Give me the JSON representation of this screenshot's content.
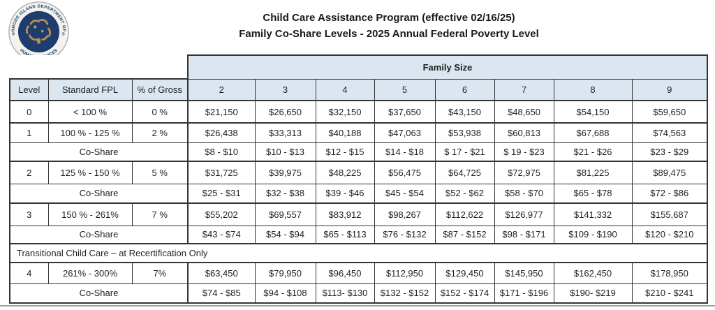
{
  "logo": {
    "ring_text_top": "RHODE ISLAND DEPARTMENT OF",
    "ring_text_bottom": "HUMAN SERVICES",
    "colors": {
      "disc": "#1e3c6e",
      "emblem": "#b8914d",
      "ring": "#f4f2ed"
    }
  },
  "title": {
    "line1": "Child Care Assistance Program (effective 02/16/25)",
    "line2": "Family Co-Share Levels - 2025 Annual Federal Poverty Level"
  },
  "table": {
    "family_size_label": "Family Size",
    "headers": {
      "level": "Level",
      "fpl": "Standard FPL",
      "gross": "% of Gross",
      "sizes": [
        "2",
        "3",
        "4",
        "5",
        "6",
        "7",
        "8",
        "9"
      ]
    },
    "co_share_label": "Co-Share",
    "header_bg": "#dce6f1",
    "rows": [
      {
        "type": "level",
        "level": "0",
        "fpl": "< 100 %",
        "gross": "0 %",
        "values": [
          "$21,150",
          "$26,650",
          "$32,150",
          "$37,650",
          "$43,150",
          "$48,650",
          "$54,150",
          "$59,650"
        ]
      },
      {
        "type": "level",
        "level": "1",
        "fpl": "100 % - 125 %",
        "gross": "2 %",
        "values": [
          "$26,438",
          "$33,313",
          "$40,188",
          "$47,063",
          "$53,938",
          "$60,813",
          "$67,688",
          "$74,563"
        ]
      },
      {
        "type": "coshare",
        "values": [
          "$8 - $10",
          "$10 - $13",
          "$12 - $15",
          "$14 - $18",
          "$ 17 - $21",
          "$ 19 - $23",
          "$21 - $26",
          "$23 - $29"
        ]
      },
      {
        "type": "level",
        "level": "2",
        "fpl": "125 % - 150 %",
        "gross": "5 %",
        "values": [
          "$31,725",
          "$39,975",
          "$48,225",
          "$56,475",
          "$64,725",
          "$72,975",
          "$81,225",
          "$89,475"
        ]
      },
      {
        "type": "coshare",
        "values": [
          "$25 - $31",
          "$32 - $38",
          "$39 - $46",
          "$45 - $54",
          "$52 - $62",
          "$58 - $70",
          "$65 - $78",
          "$72 - $86"
        ]
      },
      {
        "type": "level",
        "level": "3",
        "fpl": "150 % - 261%",
        "gross": "7 %",
        "values": [
          "$55,202",
          "$69,557",
          "$83,912",
          "$98,267",
          "$112,622",
          "$126,977",
          "$141,332",
          "$155,687"
        ]
      },
      {
        "type": "coshare",
        "values": [
          "$43 - $74",
          "$54 - $94",
          "$65 - $113",
          "$76 - $132",
          "$87 - $152",
          "$98 - $171",
          "$109 - $190",
          "$120 - $210"
        ]
      },
      {
        "type": "section",
        "label": "Transitional Child Care – at Recertification Only"
      },
      {
        "type": "level",
        "level": "4",
        "fpl": "261% - 300%",
        "gross": "7%",
        "values": [
          "$63,450",
          "$79,950",
          "$96,450",
          "$112,950",
          "$129,450",
          "$145,950",
          "$162,450",
          "$178,950"
        ]
      },
      {
        "type": "coshare",
        "values": [
          "$74 - $85",
          "$94 - $108",
          "$113- $130",
          "$132 - $152",
          "$152 - $174",
          "$171 - $196",
          "$190- $219",
          "$210 - $241"
        ]
      }
    ]
  }
}
